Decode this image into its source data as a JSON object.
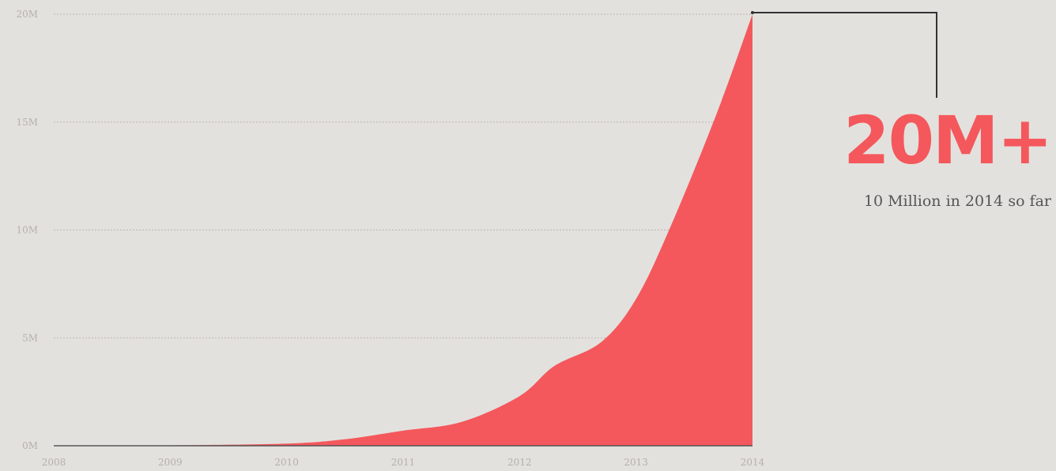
{
  "chart_data": {
    "type": "area",
    "x": [
      2008,
      2009,
      2010,
      2010.5,
      2011,
      2011.5,
      2012,
      2012.3,
      2012.7,
      2013,
      2013.3,
      2013.7,
      2014
    ],
    "values": [
      0,
      0.02,
      0.1,
      0.3,
      0.7,
      1.1,
      2.3,
      3.7,
      4.8,
      6.8,
      10.2,
      15.5,
      20
    ],
    "xticks": [
      2008,
      2009,
      2010,
      2011,
      2012,
      2013,
      2014
    ],
    "yticks": [
      "0M",
      "5M",
      "10M",
      "15M",
      "20M"
    ],
    "ylim": [
      0,
      20
    ],
    "xlim": [
      2008,
      2014
    ],
    "grid": true,
    "color": "#f4585c",
    "annotation": {
      "big": "20M+",
      "sub": "10 Million in 2014 so far"
    }
  }
}
